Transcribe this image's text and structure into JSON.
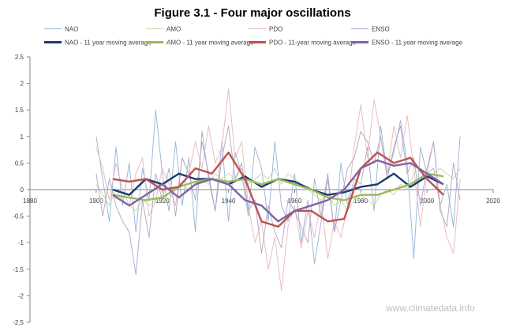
{
  "chart_data": {
    "type": "line",
    "title": "Figure 3.1 - Four major oscillations",
    "xlim": [
      1880,
      2020
    ],
    "ylim": [
      -2.5,
      2.5
    ],
    "x_ticks": [
      1880,
      1900,
      1920,
      1940,
      1960,
      1980,
      2000,
      2020
    ],
    "y_ticks": [
      -2.5,
      -2,
      -1.5,
      -1,
      -0.5,
      0,
      0.5,
      1,
      1.5,
      2,
      2.5
    ],
    "grid": false,
    "legend_position": "top",
    "series": [
      {
        "name": "NAO",
        "color": "#95B3D7",
        "style": "thin",
        "x": [
          1900,
          1902,
          1904,
          1906,
          1908,
          1910,
          1912,
          1914,
          1916,
          1918,
          1920,
          1922,
          1924,
          1926,
          1928,
          1930,
          1932,
          1934,
          1936,
          1938,
          1940,
          1942,
          1944,
          1946,
          1948,
          1950,
          1952,
          1954,
          1956,
          1958,
          1960,
          1962,
          1964,
          1966,
          1968,
          1970,
          1972,
          1974,
          1976,
          1978,
          1980,
          1982,
          1984,
          1986,
          1988,
          1990,
          1992,
          1994,
          1996,
          1998,
          2000,
          2002,
          2004,
          2006,
          2008,
          2010
        ],
        "values": [
          1.0,
          0.2,
          -0.6,
          0.8,
          -0.3,
          0.5,
          -0.8,
          0.4,
          -0.2,
          1.5,
          0.3,
          -0.4,
          0.9,
          -0.3,
          0.6,
          -0.8,
          1.1,
          0.2,
          -0.4,
          0.9,
          -0.6,
          0.7,
          0.3,
          -0.5,
          0.8,
          0.4,
          -0.6,
          0.9,
          -0.3,
          -0.6,
          0.3,
          -1.0,
          -0.2,
          -1.4,
          -0.6,
          0.2,
          -0.8,
          0.5,
          -0.3,
          0.2,
          0.1,
          0.8,
          -0.4,
          1.2,
          0.3,
          0.7,
          1.3,
          0.5,
          -1.3,
          0.8,
          0.3,
          0.4,
          -0.3,
          0.1,
          -0.7,
          1.0
        ]
      },
      {
        "name": "AMO",
        "color": "#C3D69B",
        "style": "thin",
        "x": [
          1900,
          1902,
          1904,
          1906,
          1908,
          1910,
          1912,
          1914,
          1916,
          1918,
          1920,
          1922,
          1924,
          1926,
          1928,
          1930,
          1932,
          1934,
          1936,
          1938,
          1940,
          1942,
          1944,
          1946,
          1948,
          1950,
          1952,
          1954,
          1956,
          1958,
          1960,
          1962,
          1964,
          1966,
          1968,
          1970,
          1972,
          1974,
          1976,
          1978,
          1980,
          1982,
          1984,
          1986,
          1988,
          1990,
          1992,
          1994,
          1996,
          1998,
          2000,
          2002,
          2004,
          2006,
          2008,
          2010
        ],
        "values": [
          0.1,
          -0.1,
          -0.3,
          0.0,
          -0.2,
          -0.3,
          -0.4,
          -0.2,
          -0.3,
          -0.2,
          -0.1,
          -0.2,
          0.0,
          0.1,
          0.0,
          0.1,
          0.2,
          0.1,
          0.3,
          0.2,
          0.3,
          0.2,
          0.4,
          0.1,
          0.2,
          0.3,
          0.2,
          0.4,
          0.1,
          0.3,
          0.2,
          0.1,
          0.0,
          -0.1,
          -0.2,
          -0.1,
          -0.3,
          -0.2,
          -0.4,
          -0.2,
          -0.1,
          -0.2,
          -0.3,
          -0.1,
          0.0,
          -0.1,
          0.1,
          0.0,
          0.3,
          0.4,
          0.2,
          0.3,
          0.4,
          0.3,
          0.2,
          0.4
        ]
      },
      {
        "name": "PDO",
        "color": "#E6B9B8",
        "style": "thin",
        "x": [
          1900,
          1902,
          1904,
          1906,
          1908,
          1910,
          1912,
          1914,
          1916,
          1918,
          1920,
          1922,
          1924,
          1926,
          1928,
          1930,
          1932,
          1934,
          1936,
          1938,
          1940,
          1942,
          1944,
          1946,
          1948,
          1950,
          1952,
          1954,
          1956,
          1958,
          1960,
          1962,
          1964,
          1966,
          1968,
          1970,
          1972,
          1974,
          1976,
          1978,
          1980,
          1982,
          1984,
          1986,
          1988,
          1990,
          1992,
          1994,
          1996,
          1998,
          2000,
          2002,
          2004,
          2006,
          2008,
          2010
        ],
        "values": [
          0.8,
          0.4,
          -0.2,
          0.5,
          0.0,
          -0.3,
          0.3,
          0.6,
          -0.5,
          -0.2,
          0.4,
          0.1,
          -0.3,
          0.6,
          0.3,
          0.9,
          0.4,
          1.2,
          0.5,
          0.8,
          1.9,
          0.6,
          0.9,
          -0.3,
          -1.0,
          -0.6,
          -1.5,
          -0.9,
          -1.9,
          -0.7,
          -0.3,
          -1.1,
          -0.4,
          -0.9,
          -0.2,
          -1.3,
          -0.6,
          -0.9,
          -0.3,
          0.8,
          1.6,
          0.6,
          1.7,
          1.0,
          0.3,
          1.2,
          0.6,
          1.4,
          0.4,
          -0.7,
          0.3,
          0.9,
          -0.3,
          -0.9,
          -1.2,
          0.2
        ]
      },
      {
        "name": "ENSO",
        "color": "#B3A2C7",
        "style": "thin",
        "x": [
          1900,
          1902,
          1904,
          1906,
          1908,
          1910,
          1912,
          1914,
          1916,
          1918,
          1920,
          1922,
          1924,
          1926,
          1928,
          1930,
          1932,
          1934,
          1936,
          1938,
          1940,
          1942,
          1944,
          1946,
          1948,
          1950,
          1952,
          1954,
          1956,
          1958,
          1960,
          1962,
          1964,
          1966,
          1968,
          1970,
          1972,
          1974,
          1976,
          1978,
          1980,
          1982,
          1984,
          1986,
          1988,
          1990,
          1992,
          1994,
          1996,
          1998,
          2000,
          2002,
          2004,
          2006,
          2008,
          2010
        ],
        "values": [
          0.3,
          -0.5,
          0.2,
          -0.3,
          -0.6,
          -0.8,
          -1.6,
          -0.2,
          -0.9,
          0.3,
          -0.2,
          0.4,
          -0.5,
          0.6,
          0.3,
          -0.2,
          0.9,
          0.3,
          -0.4,
          0.6,
          1.2,
          0.2,
          0.5,
          -0.4,
          -0.2,
          -1.2,
          -0.3,
          -0.8,
          -1.1,
          -0.2,
          -0.4,
          -0.7,
          -1.0,
          0.2,
          -0.5,
          0.3,
          -0.8,
          -0.2,
          0.4,
          0.6,
          1.1,
          0.9,
          0.5,
          1.0,
          0.2,
          0.8,
          1.2,
          0.3,
          0.6,
          -0.3,
          0.4,
          0.9,
          -0.4,
          -0.7,
          0.5,
          -0.2
        ]
      },
      {
        "name": "NAO - 11 year moving average",
        "color": "#1F3A6E",
        "style": "thick",
        "x": [
          1905,
          1910,
          1915,
          1920,
          1925,
          1930,
          1935,
          1940,
          1945,
          1950,
          1955,
          1960,
          1965,
          1970,
          1975,
          1980,
          1985,
          1990,
          1995,
          2000,
          2005
        ],
        "values": [
          0.0,
          -0.1,
          0.2,
          0.1,
          0.3,
          0.2,
          0.2,
          0.1,
          0.25,
          0.05,
          0.2,
          0.15,
          0.0,
          -0.1,
          -0.05,
          0.05,
          0.1,
          0.3,
          0.05,
          0.25,
          0.1
        ]
      },
      {
        "name": "AMO - 11 year moving average",
        "color": "#9BBB59",
        "style": "thick",
        "x": [
          1905,
          1910,
          1915,
          1920,
          1925,
          1930,
          1935,
          1940,
          1945,
          1950,
          1955,
          1960,
          1965,
          1970,
          1975,
          1980,
          1985,
          1990,
          1995,
          2000,
          2005
        ],
        "values": [
          -0.1,
          -0.15,
          -0.2,
          -0.15,
          0.05,
          0.15,
          0.2,
          0.15,
          0.2,
          0.1,
          0.2,
          0.1,
          0.0,
          -0.15,
          -0.2,
          -0.1,
          -0.1,
          0.0,
          0.1,
          0.3,
          0.25
        ]
      },
      {
        "name": "PDO - 11-year moving average",
        "color": "#C0504D",
        "style": "thick",
        "x": [
          1905,
          1910,
          1915,
          1920,
          1925,
          1930,
          1935,
          1940,
          1945,
          1950,
          1955,
          1960,
          1965,
          1970,
          1975,
          1980,
          1985,
          1990,
          1995,
          2000,
          2005
        ],
        "values": [
          0.2,
          0.15,
          0.2,
          0.0,
          0.05,
          0.4,
          0.3,
          0.7,
          0.2,
          -0.6,
          -0.7,
          -0.4,
          -0.4,
          -0.6,
          -0.55,
          0.4,
          0.7,
          0.5,
          0.6,
          0.2,
          -0.1
        ]
      },
      {
        "name": "ENSO - 11 year moving average",
        "color": "#8064A2",
        "style": "thick",
        "x": [
          1905,
          1910,
          1915,
          1920,
          1925,
          1930,
          1935,
          1940,
          1945,
          1950,
          1955,
          1960,
          1965,
          1970,
          1975,
          1980,
          1985,
          1990,
          1995,
          2000,
          2005
        ],
        "values": [
          -0.1,
          -0.3,
          -0.1,
          0.1,
          -0.15,
          0.1,
          0.2,
          0.1,
          -0.2,
          -0.3,
          -0.6,
          -0.4,
          -0.3,
          -0.2,
          0.0,
          0.4,
          0.55,
          0.45,
          0.5,
          0.3,
          0.1
        ]
      }
    ]
  },
  "legend": {
    "nao": "NAO",
    "amo": "AMO",
    "pdo": "PDO",
    "enso": "ENSO",
    "nao_ma": "NAO - 11 year moving average",
    "amo_ma": "AMO - 11 year moving average",
    "pdo_ma": "PDO - 11-year moving average",
    "enso_ma": "ENSO - 11 year moving average"
  },
  "watermark": "www.climatedata.info"
}
